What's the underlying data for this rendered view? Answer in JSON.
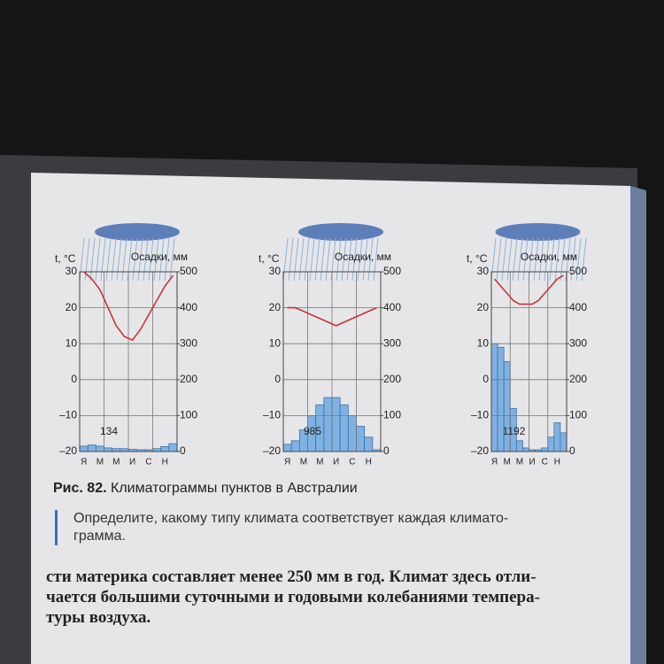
{
  "chart_data": [
    {
      "type": "climatogram",
      "ylabel": "t, °C",
      "y2label": "Осадки, мм",
      "annotation": "134",
      "categories": [
        "Я",
        null,
        "М",
        null,
        "М",
        null,
        "И",
        null,
        "С",
        null,
        "Н",
        null
      ],
      "series": [
        {
          "type": "bar",
          "axis": "y2",
          "color": "#7fb2e2",
          "values": [
            15,
            18,
            15,
            10,
            8,
            8,
            6,
            5,
            5,
            8,
            14,
            22
          ]
        },
        {
          "type": "line",
          "color": "#c8343a",
          "values": [
            30,
            28,
            25,
            20,
            15,
            12,
            11,
            14,
            18,
            22,
            26,
            29
          ]
        }
      ],
      "ylim": [
        -20,
        30
      ],
      "yticks": [
        {
          "value": -20,
          "label": "–20"
        },
        {
          "value": -10,
          "label": "–10"
        },
        0,
        10,
        20,
        30
      ],
      "y2lim": [
        0,
        500
      ],
      "y2ticks": [
        0,
        100,
        200,
        300,
        400,
        500
      ],
      "grid": true
    },
    {
      "type": "climatogram",
      "ylabel": "t, °C",
      "y2label": "Осадки, мм",
      "annotation": "985",
      "categories": [
        "Я",
        null,
        "М",
        null,
        "М",
        null,
        "И",
        null,
        "С",
        null,
        "Н",
        null
      ],
      "series": [
        {
          "type": "bar",
          "axis": "y2",
          "color": "#7fb2e2",
          "values": [
            20,
            30,
            60,
            100,
            130,
            150,
            150,
            130,
            100,
            70,
            40,
            5
          ]
        },
        {
          "type": "line",
          "color": "#c8343a",
          "values": [
            20,
            20,
            19,
            18,
            17,
            16,
            15,
            16,
            17,
            18,
            19,
            20
          ]
        }
      ],
      "ylim": [
        -20,
        30
      ],
      "yticks": [
        {
          "value": -20,
          "label": "–20"
        },
        {
          "value": -10,
          "label": "–10"
        },
        0,
        10,
        20,
        30
      ],
      "y2lim": [
        0,
        500
      ],
      "y2ticks": [
        0,
        100,
        200,
        300,
        400,
        500
      ],
      "grid": true
    },
    {
      "type": "climatogram",
      "ylabel": "t, °C",
      "y2label": "Осадки, мм",
      "annotation": "1192",
      "categories": [
        "Я",
        null,
        "М",
        null,
        "М",
        null,
        "И",
        null,
        "С",
        null,
        "Н",
        null
      ],
      "series": [
        {
          "type": "bar",
          "axis": "y2",
          "color": "#7fb2e2",
          "values": [
            300,
            290,
            250,
            120,
            30,
            10,
            5,
            5,
            10,
            40,
            80,
            52
          ]
        },
        {
          "type": "line",
          "color": "#c8343a",
          "values": [
            28,
            26,
            24,
            22,
            21,
            21,
            21,
            22,
            24,
            26,
            28,
            29
          ]
        }
      ],
      "ylim": [
        -20,
        30
      ],
      "yticks": [
        {
          "value": -20,
          "label": "–20"
        },
        {
          "value": -10,
          "label": "–10"
        },
        0,
        10,
        20,
        30
      ],
      "y2lim": [
        0,
        500
      ],
      "y2ticks": [
        0,
        100,
        200,
        300,
        400,
        500
      ],
      "grid": true
    }
  ],
  "caption": {
    "label": "Рис. 82.",
    "text": "Климатограммы пунктов в Австралии"
  },
  "question": [
    "Определите, какому типу климата соответствует каждая климато-",
    "грамма."
  ],
  "body": [
    "сти материка составляет менее 250 мм в год. Климат здесь отли-",
    "чается большими суточными и годовыми колебаниями темпера-",
    "туры воздуха."
  ]
}
